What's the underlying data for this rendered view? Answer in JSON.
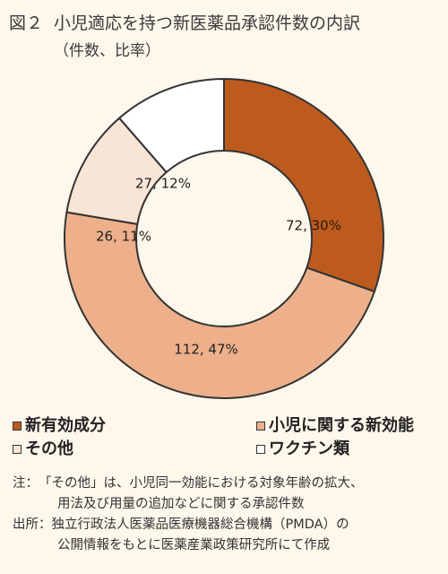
{
  "figure": {
    "number": "図２",
    "title": "小児適応を持つ新医薬品承認件数の内訳",
    "subtitle": "（件数、比率）"
  },
  "chart_data": {
    "type": "pie",
    "style": "donut",
    "categories": [
      "新有効成分",
      "小児に関する新効能",
      "その他",
      "ワクチン類"
    ],
    "values": [
      72,
      112,
      26,
      27
    ],
    "percents": [
      30,
      47,
      11,
      12
    ],
    "data_labels": [
      "72, 30%",
      "112, 47%",
      "26, 11%",
      "27, 12%"
    ],
    "colors": [
      "#bd5b1f",
      "#edb08a",
      "#f9e5d6",
      "#ffffff"
    ],
    "stroke_color": "#333333",
    "start": "12 o'clock",
    "direction": "clockwise",
    "legend_placement": "bottom"
  },
  "legend": {
    "items": [
      {
        "label": "新有効成分",
        "color": "#bd5b1f"
      },
      {
        "label": "小児に関する新効能",
        "color": "#edb08a"
      },
      {
        "label": "その他",
        "color": "#f9e5d6"
      },
      {
        "label": "ワクチン類",
        "color": "#ffffff"
      }
    ]
  },
  "notes": {
    "note_label": "注：",
    "note_line1": "「その他」は、小児同一効能における対象年齢の拡大、",
    "note_line2": "用法及び用量の追加などに関する承認件数",
    "source_label": "出所：",
    "source_line1": "独立行政法人医薬品医療機器総合機構（PMDA）の",
    "source_line2": "公開情報をもとに医薬産業政策研究所にて作成"
  },
  "background_color": "#fdf7ec"
}
